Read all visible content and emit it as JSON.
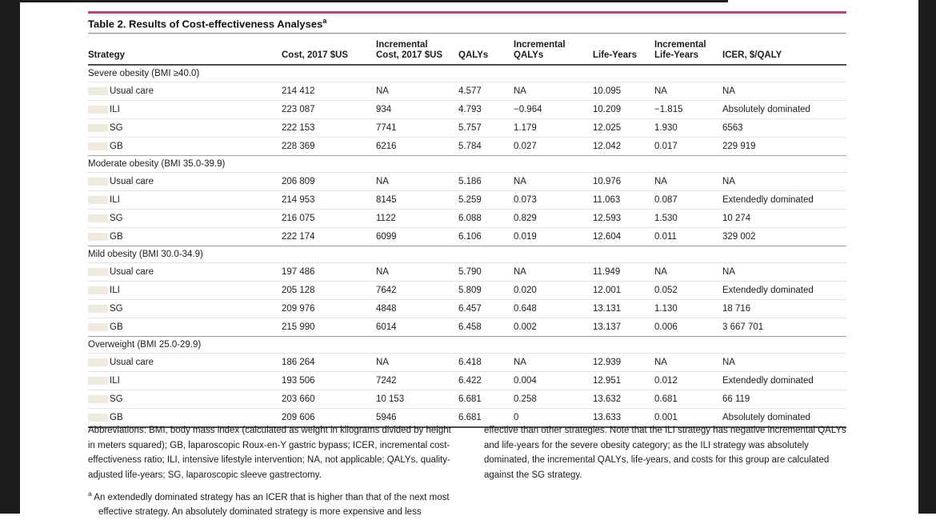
{
  "page": {
    "title": "Table 2. Results of Cost-effectiveness Analyses",
    "title_sup": "a"
  },
  "table": {
    "columns": [
      "Strategy",
      "Cost, 2017 $US",
      "Incremental\nCost, 2017 $US",
      "QALYs",
      "Incremental\nQALYs",
      "Life-Years",
      "Incremental\nLife-Years",
      "ICER, $/QALY"
    ],
    "sections": [
      {
        "label": "Severe obesity (BMI ≥40.0)",
        "rows": [
          [
            "Usual care",
            "214 412",
            "NA",
            "4.577",
            "NA",
            "10.095",
            "NA",
            "NA"
          ],
          [
            "ILI",
            "223 087",
            "934",
            "4.793",
            "−0.964",
            "10.209",
            "−1.815",
            "Absolutely dominated"
          ],
          [
            "SG",
            "222 153",
            "7741",
            "5.757",
            "1.179",
            "12.025",
            "1.930",
            "6563"
          ],
          [
            "GB",
            "228 369",
            "6216",
            "5.784",
            "0.027",
            "12.042",
            "0.017",
            "229 919"
          ]
        ]
      },
      {
        "label": "Moderate obesity (BMI 35.0-39.9)",
        "rows": [
          [
            "Usual care",
            "206 809",
            "NA",
            "5.186",
            "NA",
            "10.976",
            "NA",
            "NA"
          ],
          [
            "ILI",
            "214 953",
            "8145",
            "5.259",
            "0.073",
            "11.063",
            "0.087",
            "Extendedly dominated"
          ],
          [
            "SG",
            "216 075",
            "1122",
            "6.088",
            "0.829",
            "12.593",
            "1.530",
            "10 274"
          ],
          [
            "GB",
            "222 174",
            "6099",
            "6.106",
            "0.019",
            "12.604",
            "0.011",
            "329 002"
          ]
        ]
      },
      {
        "label": "Mild obesity (BMI 30.0-34.9)",
        "rows": [
          [
            "Usual care",
            "197 486",
            "NA",
            "5.790",
            "NA",
            "11.949",
            "NA",
            "NA"
          ],
          [
            "ILI",
            "205 128",
            "7642",
            "5.809",
            "0.020",
            "12.001",
            "0.052",
            "Extendedly dominated"
          ],
          [
            "SG",
            "209 976",
            "4848",
            "6.457",
            "0.648",
            "13.131",
            "1.130",
            "18 716"
          ],
          [
            "GB",
            "215 990",
            "6014",
            "6.458",
            "0.002",
            "13.137",
            "0.006",
            "3 667 701"
          ]
        ]
      },
      {
        "label": "Overweight (BMI 25.0-29.9)",
        "rows": [
          [
            "Usual care",
            "186 264",
            "NA",
            "6.418",
            "NA",
            "12.939",
            "NA",
            "NA"
          ],
          [
            "ILI",
            "193 506",
            "7242",
            "6.422",
            "0.004",
            "12.951",
            "0.012",
            "Extendedly dominated"
          ],
          [
            "SG",
            "203 660",
            "10 153",
            "6.681",
            "0.258",
            "13.632",
            "0.681",
            "66 119"
          ],
          [
            "GB",
            "209 606",
            "5946",
            "6.681",
            "0",
            "13.633",
            "0.001",
            "Absolutely dominated"
          ]
        ]
      }
    ]
  },
  "footnotes": {
    "abbreviations": "Abbreviations: BMI, body mass index (calculated as weight in kilograms divided by height in meters squared); GB, laparoscopic Roux-en-Y gastric bypass; ICER, incremental cost-effectiveness ratio; ILI, intensive lifestyle intervention; NA, not applicable; QALYs, quality-adjusted life-years; SG, laparoscopic sleeve gastrectomy.",
    "note_a_marker": "a",
    "note_a_left": "An extendedly dominated strategy has an ICER that is higher than that of the next most effective strategy. An absolutely dominated strategy is more expensive and less",
    "note_a_right": "effective than other strategies. Note that the ILI strategy has negative incremental QALYs and life-years for the severe obesity category; as the ILI strategy was absolutely dominated, the incremental QALYs, life-years, and costs for this group are calculated against the SG strategy."
  },
  "colors": {
    "accent_rule": "#b5497f",
    "row_indent_marker": "#eeeadd",
    "frame": "#1c1c1c"
  }
}
